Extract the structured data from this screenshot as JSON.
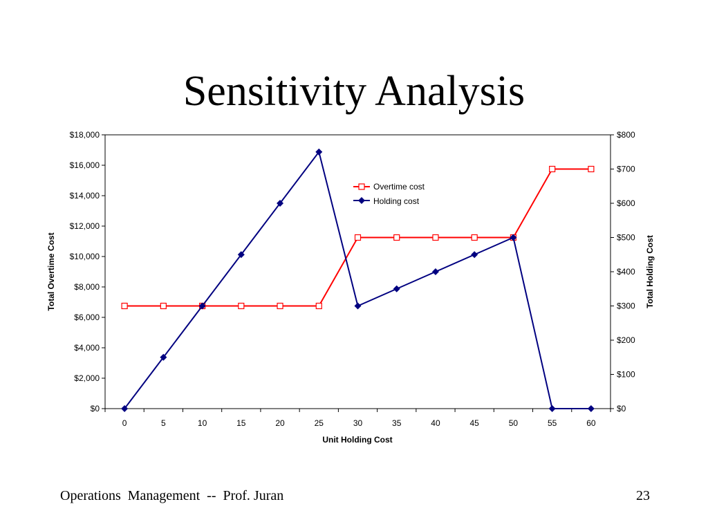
{
  "slide": {
    "title": "Sensitivity Analysis",
    "footer_left": "Operations  Management  --  Prof. Juran",
    "page_number": "23"
  },
  "chart_data": {
    "type": "line",
    "title": "",
    "xlabel": "Unit Holding Cost",
    "ylabel": "Total Overtime Cost",
    "y2label": "Total Holding Cost",
    "x": [
      0,
      5,
      10,
      15,
      20,
      25,
      30,
      35,
      40,
      45,
      50,
      55,
      60
    ],
    "ylim": [
      0,
      18000
    ],
    "y2lim": [
      0,
      800
    ],
    "yticks": [
      0,
      2000,
      4000,
      6000,
      8000,
      10000,
      12000,
      14000,
      16000,
      18000
    ],
    "ytick_labels": [
      "$0",
      "$2,000",
      "$4,000",
      "$6,000",
      "$8,000",
      "$10,000",
      "$12,000",
      "$14,000",
      "$16,000",
      "$18,000"
    ],
    "y2ticks": [
      0,
      100,
      200,
      300,
      400,
      500,
      600,
      700,
      800
    ],
    "y2tick_labels": [
      "$0",
      "$100",
      "$200",
      "$300",
      "$400",
      "$500",
      "$600",
      "$700",
      "$800"
    ],
    "grid": false,
    "legend_position": "top-center",
    "series": [
      {
        "name": "Overtime cost",
        "axis": "left",
        "color": "#ff0000",
        "marker": "open-square",
        "values": [
          6750,
          6750,
          6750,
          6750,
          6750,
          6750,
          11250,
          11250,
          11250,
          11250,
          11250,
          15750,
          15750
        ]
      },
      {
        "name": "Holding cost",
        "axis": "right",
        "color": "#000080",
        "marker": "filled-diamond",
        "values": [
          0,
          150,
          300,
          450,
          600,
          750,
          300,
          350,
          400,
          450,
          500,
          0,
          0
        ]
      }
    ]
  }
}
